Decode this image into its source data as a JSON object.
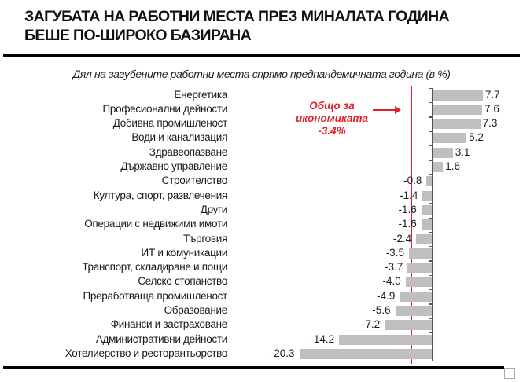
{
  "header": {
    "title_line1": "ЗАГУБАТА НА РАБОТНИ МЕСТА ПРЕЗ МИНАЛАТА ГОДИНА",
    "title_line2": "БЕШЕ ПО-ШИРОКО БАЗИРАНА"
  },
  "annotation": {
    "line1": "Общо за",
    "line2": "икономиката",
    "line3": "-3.4%",
    "color": "#e0202a"
  },
  "chart_data": {
    "type": "bar",
    "orientation": "horizontal",
    "title": "Дял на загубените работни места спрямо предпандемичната година (в %)",
    "xlabel": "",
    "ylabel": "",
    "bar_color": "#bfbfbf",
    "reference_line": {
      "value": -3.4,
      "label": "Общо за икономиката -3.4%",
      "color": "#e0202a"
    },
    "categories": [
      "Енергетика",
      "Професионални дейности",
      "Добивна промишленост",
      "Води и канализация",
      "Здравеопазване",
      "Държавно управление",
      "Строителство",
      "Култура, спорт, развлечения",
      "Други",
      "Операции с недвижими имоти",
      "Търговия",
      "ИТ и комуникации",
      "Транспорт, складиране и пощи",
      "Селско стопанство",
      "Преработваща промишленост",
      "Образование",
      "Финанси и застраховане",
      "Административни дейности",
      "Хотелиерство и ресторантьорство"
    ],
    "values": [
      7.7,
      7.6,
      7.3,
      5.2,
      3.1,
      1.6,
      -0.8,
      -1.4,
      -1.6,
      -1.6,
      -2.4,
      -3.5,
      -3.7,
      -4.0,
      -4.9,
      -5.6,
      -7.2,
      -14.2,
      -20.3
    ],
    "value_labels": [
      "7.7",
      "7.6",
      "7.3",
      "5.2",
      "3.1",
      "1.6",
      "-0.8",
      "-1.4",
      "-1.6",
      "-1.6",
      "-2.4",
      "-3.5",
      "-3.7",
      "-4.0",
      "-4.9",
      "-5.6",
      "-7.2",
      "-14.2",
      "-20.3"
    ],
    "xlim": [
      -20.3,
      7.7
    ],
    "grid": false,
    "legend": null
  }
}
